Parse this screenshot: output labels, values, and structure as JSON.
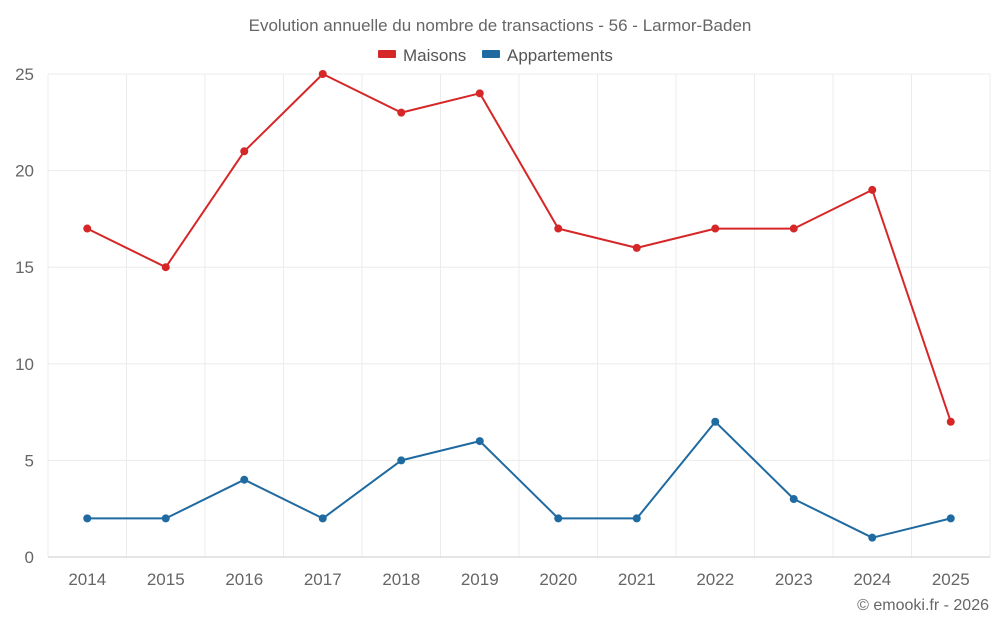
{
  "chart_data": {
    "type": "line",
    "title": "Evolution annuelle du nombre de transactions - 56 - Larmor-Baden",
    "categories": [
      "2014",
      "2015",
      "2016",
      "2017",
      "2018",
      "2019",
      "2020",
      "2021",
      "2022",
      "2023",
      "2024",
      "2025"
    ],
    "series": [
      {
        "name": "Maisons",
        "color": "#d62728",
        "values": [
          17,
          15,
          21,
          25,
          23,
          24,
          17,
          16,
          17,
          17,
          19,
          7
        ]
      },
      {
        "name": "Appartements",
        "color": "#1f6aa0",
        "values": [
          2,
          2,
          4,
          2,
          5,
          6,
          2,
          2,
          7,
          3,
          1,
          2
        ]
      }
    ],
    "ylim": [
      0,
      25
    ],
    "yticks": [
      0,
      5,
      10,
      15,
      20,
      25
    ],
    "grid": true,
    "legend": "top-center",
    "xlabel": "",
    "ylabel": ""
  },
  "credit": "© emooki.fr - 2026"
}
